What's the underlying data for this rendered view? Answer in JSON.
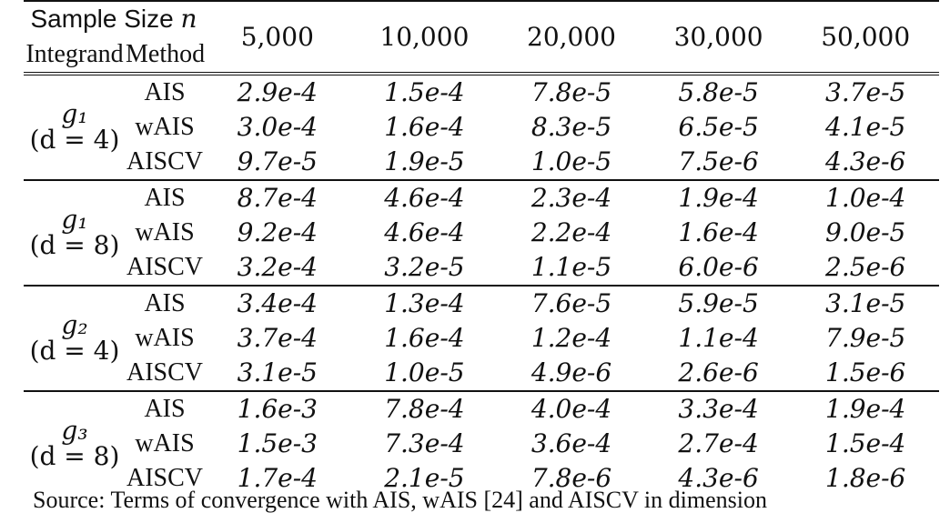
{
  "header": {
    "sample_size_label": "Sample Size",
    "sample_size_var": "n",
    "integrand_label": "Integrand",
    "method_label": "Method",
    "sizes": [
      "5,000",
      "10,000",
      "20,000",
      "30,000",
      "50,000"
    ]
  },
  "groups": [
    {
      "integrand": "g₁",
      "dimension": "(d = 4)",
      "rows": [
        {
          "method": "AIS",
          "values": [
            "2.9e-4",
            "1.5e-4",
            "7.8e-5",
            "5.8e-5",
            "3.7e-5"
          ]
        },
        {
          "method": "wAIS",
          "values": [
            "3.0e-4",
            "1.6e-4",
            "8.3e-5",
            "6.5e-5",
            "4.1e-5"
          ]
        },
        {
          "method": "AISCV",
          "values": [
            "9.7e-5",
            "1.9e-5",
            "1.0e-5",
            "7.5e-6",
            "4.3e-6"
          ],
          "best": true
        }
      ]
    },
    {
      "integrand": "g₁",
      "dimension": "(d = 8)",
      "rows": [
        {
          "method": "AIS",
          "values": [
            "8.7e-4",
            "4.6e-4",
            "2.3e-4",
            "1.9e-4",
            "1.0e-4"
          ]
        },
        {
          "method": "wAIS",
          "values": [
            "9.2e-4",
            "4.6e-4",
            "2.2e-4",
            "1.6e-4",
            "9.0e-5"
          ]
        },
        {
          "method": "AISCV",
          "values": [
            "3.2e-4",
            "3.2e-5",
            "1.1e-5",
            "6.0e-6",
            "2.5e-6"
          ],
          "best": true
        }
      ]
    },
    {
      "integrand": "g₂",
      "dimension": "(d = 4)",
      "rows": [
        {
          "method": "AIS",
          "values": [
            "3.4e-4",
            "1.3e-4",
            "7.6e-5",
            "5.9e-5",
            "3.1e-5"
          ]
        },
        {
          "method": "wAIS",
          "values": [
            "3.7e-4",
            "1.6e-4",
            "1.2e-4",
            "1.1e-4",
            "7.9e-5"
          ]
        },
        {
          "method": "AISCV",
          "values": [
            "3.1e-5",
            "1.0e-5",
            "4.9e-6",
            "2.6e-6",
            "1.5e-6"
          ],
          "best": true
        }
      ]
    },
    {
      "integrand": "g₃",
      "dimension": "(d = 8)",
      "rows": [
        {
          "method": "AIS",
          "values": [
            "1.6e-3",
            "7.8e-4",
            "4.0e-4",
            "3.3e-4",
            "1.9e-4"
          ]
        },
        {
          "method": "wAIS",
          "values": [
            "1.5e-3",
            "7.3e-4",
            "3.6e-4",
            "2.7e-4",
            "1.5e-4"
          ]
        },
        {
          "method": "AISCV",
          "values": [
            "1.7e-4",
            "2.1e-5",
            "7.8e-6",
            "4.3e-6",
            "1.8e-6"
          ],
          "best": true
        }
      ]
    }
  ],
  "caption": "Source: Terms of convergence with AIS, wAIS [24] and AISCV in dimension"
}
